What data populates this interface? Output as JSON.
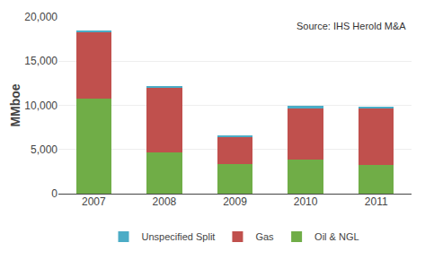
{
  "chart_data": {
    "type": "bar",
    "stacked": true,
    "categories": [
      "2007",
      "2008",
      "2009",
      "2010",
      "2011"
    ],
    "series": [
      {
        "name": "Oil & NGL",
        "color": "#70ad47",
        "values": [
          10800,
          4700,
          3400,
          3900,
          3300
        ]
      },
      {
        "name": "Gas",
        "color": "#c0504d",
        "values": [
          7500,
          7300,
          3000,
          5800,
          6400
        ]
      },
      {
        "name": "Unspecified Split",
        "color": "#4bacc6",
        "values": [
          100,
          150,
          150,
          200,
          100
        ]
      }
    ],
    "ylabel": "MMboe",
    "ylim": [
      0,
      20000
    ],
    "yticks": [
      0,
      {
        "value": 5000,
        "label": "5,000"
      },
      {
        "value": 10000,
        "label": "10,000"
      },
      {
        "value": 15000,
        "label": "15,000"
      },
      {
        "value": 20000,
        "label": "20,000"
      }
    ],
    "annotation": "Source: IHS Herold M&A",
    "grid": true,
    "legend": "bottom"
  }
}
